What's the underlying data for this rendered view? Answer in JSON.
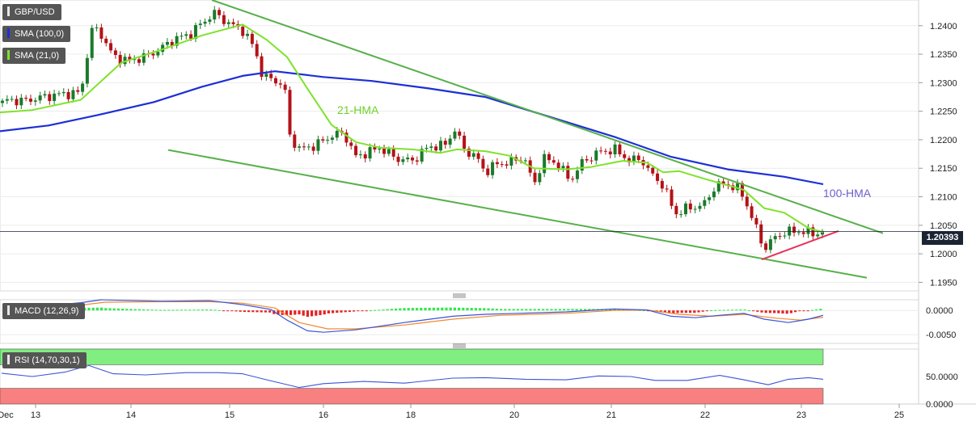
{
  "symbol": "GBP/USD",
  "indicators": {
    "sma100": "SMA (100,0)",
    "sma21": "SMA (21,0)",
    "macd": "MACD (12,26,9)",
    "rsi": "RSI (14,70,30,1)"
  },
  "annotations": {
    "hma21": "21-HMA",
    "hma100": "100-HMA"
  },
  "current_price": "1.20393",
  "colors": {
    "up": "#1a7a2a",
    "down": "#b31217",
    "hma21": "#7ee32b",
    "hma100": "#1c2fd6",
    "trendline": "#57b04a",
    "support": "#e8315a",
    "macd_pos": "#2ee84a",
    "macd_neg": "#e52222",
    "macd_line": "#3a55d9",
    "signal_line": "#ef8a2b",
    "rsi_line": "#3d55d6",
    "overbought": "#80ee80",
    "oversold": "#f88080"
  },
  "chart_data": [
    {
      "type": "candlestick",
      "title": "GBP/USD",
      "x_ticks": [
        "Dec",
        "13",
        "14",
        "15",
        "16",
        "18",
        "20",
        "21",
        "22",
        "23",
        "25"
      ],
      "y_ticks": [
        "1.2400",
        "1.2350",
        "1.2300",
        "1.2250",
        "1.2200",
        "1.2150",
        "1.2100",
        "1.2050",
        "1.2000",
        "1.1950"
      ],
      "ylim": [
        1.1935,
        1.2445
      ],
      "xlim": [
        0,
        1136
      ],
      "last_price": 1.20393,
      "candle_count": 175,
      "close_anchors": [
        [
          0,
          1.2262
        ],
        [
          10,
          1.227
        ],
        [
          30,
          1.2268
        ],
        [
          50,
          1.2274
        ],
        [
          75,
          1.228
        ],
        [
          100,
          1.2282
        ],
        [
          108,
          1.235
        ],
        [
          115,
          1.24
        ],
        [
          125,
          1.2385
        ],
        [
          140,
          1.2346
        ],
        [
          160,
          1.2338
        ],
        [
          180,
          1.2346
        ],
        [
          195,
          1.2356
        ],
        [
          215,
          1.2376
        ],
        [
          235,
          1.2385
        ],
        [
          250,
          1.2405
        ],
        [
          265,
          1.2422
        ],
        [
          285,
          1.2402
        ],
        [
          300,
          1.2392
        ],
        [
          315,
          1.236
        ],
        [
          325,
          1.231
        ],
        [
          340,
          1.2305
        ],
        [
          352,
          1.2292
        ],
        [
          358,
          1.2208
        ],
        [
          370,
          1.2183
        ],
        [
          390,
          1.219
        ],
        [
          410,
          1.2207
        ],
        [
          425,
          1.2212
        ],
        [
          440,
          1.217
        ],
        [
          455,
          1.2178
        ],
        [
          470,
          1.2186
        ],
        [
          490,
          1.2167
        ],
        [
          510,
          1.2163
        ],
        [
          530,
          1.2188
        ],
        [
          550,
          1.219
        ],
        [
          562,
          1.2218
        ],
        [
          575,
          1.2182
        ],
        [
          590,
          1.2168
        ],
        [
          600,
          1.2143
        ],
        [
          615,
          1.2158
        ],
        [
          630,
          1.216
        ],
        [
          648,
          1.217
        ],
        [
          660,
          1.212
        ],
        [
          672,
          1.2168
        ],
        [
          690,
          1.2158
        ],
        [
          705,
          1.2128
        ],
        [
          720,
          1.216
        ],
        [
          740,
          1.2178
        ],
        [
          760,
          1.2183
        ],
        [
          780,
          1.2162
        ],
        [
          792,
          1.2168
        ],
        [
          805,
          1.214
        ],
        [
          820,
          1.212
        ],
        [
          835,
          1.207
        ],
        [
          850,
          1.208
        ],
        [
          870,
          1.2085
        ],
        [
          885,
          1.212
        ],
        [
          900,
          1.2122
        ],
        [
          915,
          1.2112
        ],
        [
          925,
          1.2082
        ],
        [
          935,
          1.2045
        ],
        [
          945,
          1.2008
        ],
        [
          955,
          1.2025
        ],
        [
          970,
          1.2038
        ],
        [
          990,
          1.204
        ],
        [
          1005,
          1.2035
        ],
        [
          1018,
          1.20393
        ]
      ],
      "hma21": [
        [
          0,
          1.2248
        ],
        [
          40,
          1.2252
        ],
        [
          100,
          1.227
        ],
        [
          150,
          1.2335
        ],
        [
          200,
          1.2358
        ],
        [
          250,
          1.2383
        ],
        [
          300,
          1.2402
        ],
        [
          330,
          1.2375
        ],
        [
          355,
          1.2345
        ],
        [
          380,
          1.229
        ],
        [
          410,
          1.2226
        ],
        [
          440,
          1.2196
        ],
        [
          470,
          1.2186
        ],
        [
          510,
          1.2183
        ],
        [
          545,
          1.2177
        ],
        [
          565,
          1.2183
        ],
        [
          600,
          1.218
        ],
        [
          630,
          1.2172
        ],
        [
          660,
          1.215
        ],
        [
          700,
          1.2148
        ],
        [
          730,
          1.2152
        ],
        [
          770,
          1.2163
        ],
        [
          800,
          1.216
        ],
        [
          820,
          1.2143
        ],
        [
          840,
          1.2145
        ],
        [
          870,
          1.2132
        ],
        [
          895,
          1.2122
        ],
        [
          920,
          1.2112
        ],
        [
          945,
          1.208
        ],
        [
          970,
          1.2072
        ],
        [
          1000,
          1.2045
        ],
        [
          1018,
          1.2038
        ]
      ],
      "hma100": [
        [
          0,
          1.2215
        ],
        [
          60,
          1.2225
        ],
        [
          120,
          1.2243
        ],
        [
          190,
          1.2266
        ],
        [
          250,
          1.2293
        ],
        [
          300,
          1.2312
        ],
        [
          340,
          1.232
        ],
        [
          400,
          1.231
        ],
        [
          460,
          1.2303
        ],
        [
          530,
          1.229
        ],
        [
          600,
          1.2275
        ],
        [
          680,
          1.224
        ],
        [
          760,
          1.2205
        ],
        [
          830,
          1.217
        ],
        [
          900,
          1.2148
        ],
        [
          970,
          1.2135
        ],
        [
          1018,
          1.2122
        ]
      ],
      "trendlines": [
        {
          "from": [
            262,
            1.2445
          ],
          "to": [
            1092,
            1.2036
          ]
        },
        {
          "from": [
            208,
            1.2182
          ],
          "to": [
            1072,
            1.1958
          ]
        },
        {
          "from": [
            942,
            1.199
          ],
          "to": [
            1037,
            1.204
          ]
        }
      ]
    },
    {
      "type": "macd",
      "title": "MACD (12,26,9)",
      "y_ticks": [
        "0.0000",
        "-0.0050"
      ],
      "ylim": [
        -0.0068,
        0.0022
      ],
      "macd": [
        [
          5,
          0.0007
        ],
        [
          60,
          0.001
        ],
        [
          100,
          0.0016
        ],
        [
          125,
          0.0022
        ],
        [
          200,
          0.0019
        ],
        [
          260,
          0.002
        ],
        [
          300,
          0.0012
        ],
        [
          335,
          0.0002
        ],
        [
          355,
          -0.002
        ],
        [
          380,
          -0.0042
        ],
        [
          400,
          -0.0045
        ],
        [
          440,
          -0.004
        ],
        [
          500,
          -0.0025
        ],
        [
          560,
          -0.0012
        ],
        [
          600,
          -0.0008
        ],
        [
          640,
          -0.0006
        ],
        [
          700,
          -0.0003
        ],
        [
          760,
          0.0003
        ],
        [
          800,
          0.0001
        ],
        [
          830,
          -0.0012
        ],
        [
          860,
          -0.0015
        ],
        [
          890,
          -0.001
        ],
        [
          920,
          -0.0006
        ],
        [
          945,
          -0.0018
        ],
        [
          975,
          -0.0025
        ],
        [
          1000,
          -0.0018
        ],
        [
          1018,
          -0.001
        ]
      ],
      "signal": [
        [
          5,
          0.0006
        ],
        [
          60,
          0.0008
        ],
        [
          100,
          0.0011
        ],
        [
          130,
          0.0017
        ],
        [
          200,
          0.0018
        ],
        [
          260,
          0.0018
        ],
        [
          300,
          0.0015
        ],
        [
          340,
          0.0005
        ],
        [
          370,
          -0.0025
        ],
        [
          405,
          -0.0038
        ],
        [
          440,
          -0.0038
        ],
        [
          500,
          -0.003
        ],
        [
          560,
          -0.0018
        ],
        [
          620,
          -0.001
        ],
        [
          700,
          -0.0006
        ],
        [
          760,
          0.0
        ],
        [
          800,
          0.0001
        ],
        [
          840,
          -0.0008
        ],
        [
          880,
          -0.0012
        ],
        [
          920,
          -0.0008
        ],
        [
          960,
          -0.0016
        ],
        [
          990,
          -0.002
        ],
        [
          1018,
          -0.0014
        ]
      ]
    },
    {
      "type": "rsi",
      "title": "RSI (14,70,30,1)",
      "y_ticks": [
        "50.0000",
        "0.0000"
      ],
      "ylim": [
        0,
        100
      ],
      "overbought": 70,
      "oversold": 30,
      "values": [
        [
          2,
          56
        ],
        [
          40,
          50
        ],
        [
          80,
          58
        ],
        [
          110,
          70
        ],
        [
          140,
          55
        ],
        [
          180,
          53
        ],
        [
          230,
          57
        ],
        [
          270,
          57
        ],
        [
          300,
          55
        ],
        [
          330,
          44
        ],
        [
          370,
          30
        ],
        [
          400,
          37
        ],
        [
          450,
          41
        ],
        [
          500,
          38
        ],
        [
          560,
          47
        ],
        [
          600,
          48
        ],
        [
          650,
          45
        ],
        [
          700,
          44
        ],
        [
          740,
          51
        ],
        [
          780,
          50
        ],
        [
          810,
          43
        ],
        [
          850,
          43
        ],
        [
          890,
          52
        ],
        [
          920,
          44
        ],
        [
          950,
          35
        ],
        [
          975,
          45
        ],
        [
          1000,
          48
        ],
        [
          1018,
          45
        ]
      ]
    }
  ]
}
